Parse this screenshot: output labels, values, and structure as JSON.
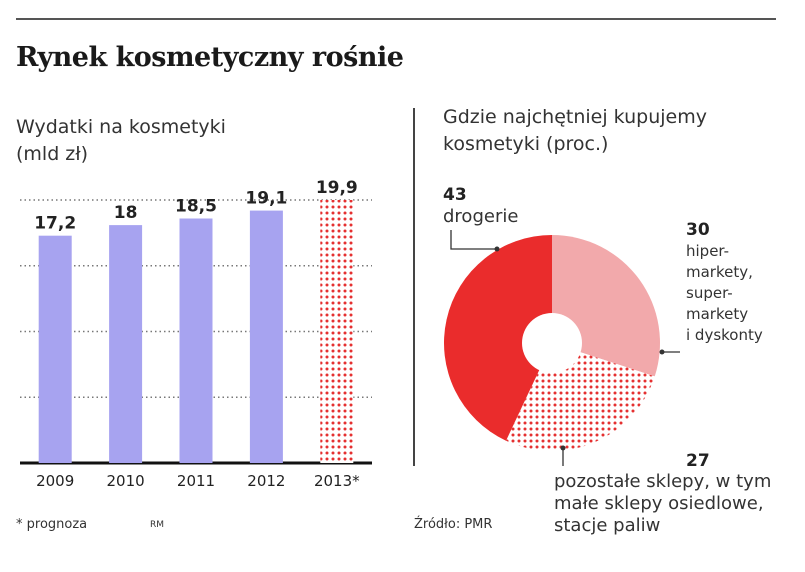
{
  "title": "Rynek kosmetyczny rośnie",
  "colors": {
    "bar": "#a7a3f0",
    "forecast": "#e53030",
    "pie_red": "#ea2c2c",
    "pie_pink": "#f2a9ab",
    "pie_dots": "#e53030"
  },
  "chart_data": [
    {
      "type": "bar",
      "title": "Wydatki na kosmetyki (mld zł)",
      "categories": [
        "2009",
        "2010",
        "2011",
        "2012",
        "2013*"
      ],
      "values": [
        17.2,
        18,
        18.5,
        19.1,
        19.9
      ],
      "value_labels": [
        "17,2",
        "18",
        "18,5",
        "19,1",
        "19,9"
      ],
      "forecast_index": 4,
      "ylim": [
        0,
        19.9
      ],
      "grid": true
    },
    {
      "type": "pie",
      "title": "Gdzie najchętniej kupujemy kosmetyki (proc.)",
      "slices": [
        {
          "value": 30,
          "value_label": "30",
          "label_lines": [
            "hiper-",
            "markety,",
            "super-",
            "markety",
            "i dyskonty"
          ],
          "style": "pink"
        },
        {
          "value": 27,
          "value_label": "27",
          "label_lines": [
            "pozostałe sklepy, w tym",
            "małe sklepy osiedlowe,",
            "stacje paliw"
          ],
          "style": "dotted"
        },
        {
          "value": 43,
          "value_label": "43",
          "label_lines": [
            "drogerie"
          ],
          "style": "red"
        }
      ]
    }
  ],
  "footnote": "* prognoza",
  "author": "RM",
  "source": "Źródło: PMR"
}
